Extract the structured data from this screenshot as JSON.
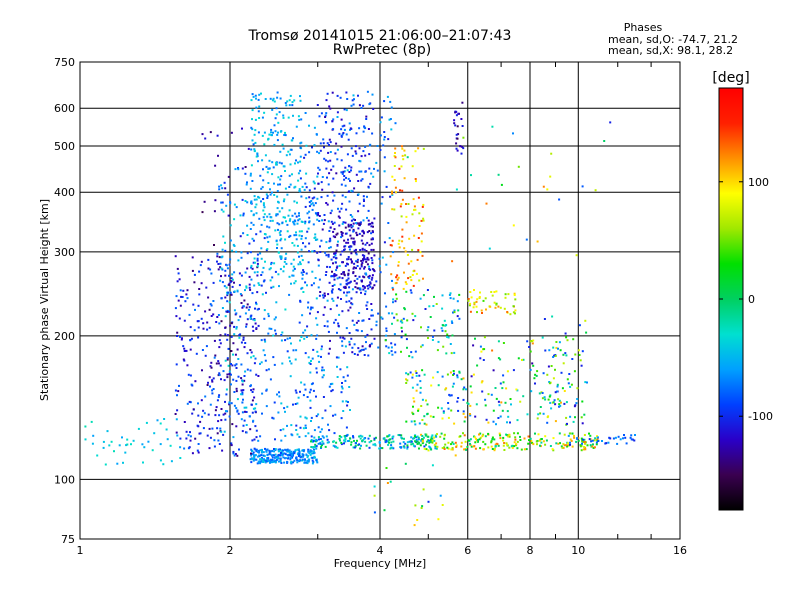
{
  "chart_data": {
    "type": "scatter",
    "title": "Tromsø 20141015 21:06:00–21:07:43",
    "subtitle": "RwPretec (8p)",
    "xlabel": "Frequency [MHz]",
    "ylabel": "Stationary phase Virtual Height [km]",
    "x_scale": "log",
    "y_scale": "log",
    "xlim": [
      1,
      16
    ],
    "ylim": [
      75,
      750
    ],
    "x_ticks": [
      1,
      2,
      4,
      6,
      8,
      10,
      16
    ],
    "y_ticks": [
      75,
      100,
      200,
      300,
      400,
      500,
      600,
      750
    ],
    "grid": true,
    "phase_stats": {
      "heading": "Phases",
      "line1": "mean, sd,O: -74.7, 21.2",
      "line2": "mean, sd,X:  98.1, 28.2"
    },
    "colorbar": {
      "label": "[deg]",
      "range": [
        -180,
        180
      ],
      "ticks": [
        100,
        0,
        -100
      ],
      "colors": [
        "#000000",
        "#3a0050",
        "#2a00c8",
        "#0040ff",
        "#00a0ff",
        "#00e0d0",
        "#00d060",
        "#00e000",
        "#a0e800",
        "#ffff00",
        "#ff9000",
        "#ff2000",
        "#ff0000"
      ]
    },
    "series": [
      {
        "clusters": [
          {
            "x": [
              2.2,
              3.0
            ],
            "y": [
              108,
              116
            ],
            "phase": [
              -90,
              -40
            ],
            "n": 260
          },
          {
            "x": [
              2.9,
              5.2
            ],
            "y": [
              116,
              124
            ],
            "phase": [
              -100,
              20
            ],
            "n": 200
          },
          {
            "x": [
              4.8,
              11.0
            ],
            "y": [
              115,
              125
            ],
            "phase": [
              -20,
              130
            ],
            "n": 230
          },
          {
            "x": [
              1.55,
              2.3
            ],
            "y": [
              112,
              300
            ],
            "phase": [
              -140,
              -70
            ],
            "n": 320
          },
          {
            "x": [
              1.9,
              3.0
            ],
            "y": [
              120,
              450
            ],
            "phase": [
              -100,
              -30
            ],
            "n": 380
          },
          {
            "x": [
              2.2,
              2.8
            ],
            "y": [
              250,
              650
            ],
            "phase": [
              -80,
              -30
            ],
            "n": 280
          },
          {
            "x": [
              2.8,
              3.5
            ],
            "y": [
              120,
              600
            ],
            "phase": [
              -110,
              -40
            ],
            "n": 220
          },
          {
            "x": [
              3.0,
              3.9
            ],
            "y": [
              180,
              650
            ],
            "phase": [
              -130,
              -70
            ],
            "n": 260
          },
          {
            "x": [
              3.2,
              3.9
            ],
            "y": [
              250,
              350
            ],
            "phase": [
              -140,
              -100
            ],
            "n": 180
          },
          {
            "x": [
              3.5,
              4.3
            ],
            "y": [
              180,
              650
            ],
            "phase": [
              -110,
              -40
            ],
            "n": 120
          },
          {
            "x": [
              4.2,
              4.9
            ],
            "y": [
              250,
              500
            ],
            "phase": [
              60,
              150
            ],
            "n": 100
          },
          {
            "x": [
              4.1,
              5.8
            ],
            "y": [
              180,
              250
            ],
            "phase": [
              -120,
              60
            ],
            "n": 90
          },
          {
            "x": [
              4.5,
              6.0
            ],
            "y": [
              130,
              170
            ],
            "phase": [
              -100,
              120
            ],
            "n": 90
          },
          {
            "x": [
              6.0,
              7.5
            ],
            "y": [
              220,
              250
            ],
            "phase": [
              40,
              140
            ],
            "n": 50
          },
          {
            "x": [
              6.0,
              9.5
            ],
            "y": [
              130,
              200
            ],
            "phase": [
              -130,
              130
            ],
            "n": 120
          },
          {
            "x": [
              8.5,
              10.5
            ],
            "y": [
              130,
              220
            ],
            "phase": [
              -120,
              80
            ],
            "n": 70
          },
          {
            "x": [
              1.0,
              1.6
            ],
            "y": [
              107,
              135
            ],
            "phase": [
              -60,
              -20
            ],
            "n": 45
          },
          {
            "x": [
              1.75,
              2.2
            ],
            "y": [
              150,
              550
            ],
            "phase": [
              -150,
              -110
            ],
            "n": 50
          },
          {
            "x": [
              3.8,
              5.8
            ],
            "y": [
              80,
              130
            ],
            "phase": [
              -100,
              140
            ],
            "n": 25
          },
          {
            "x": [
              5.6,
              5.9
            ],
            "y": [
              470,
              620
            ],
            "phase": [
              -150,
              -100
            ],
            "n": 25
          },
          {
            "x": [
              4.5,
              12.5
            ],
            "y": [
              280,
              650
            ],
            "phase": [
              -120,
              140
            ],
            "n": 25
          },
          {
            "x": [
              9.5,
              13.0
            ],
            "y": [
              118,
              124
            ],
            "phase": [
              -110,
              -60
            ],
            "n": 35
          }
        ]
      }
    ]
  }
}
